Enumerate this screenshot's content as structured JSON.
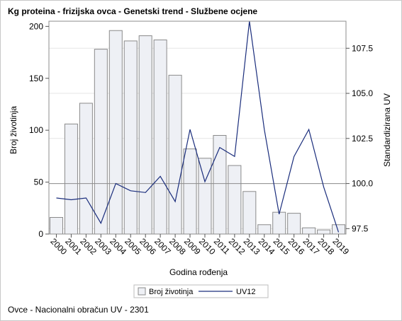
{
  "chart_data": {
    "type": "bar",
    "title": "Kg proteina - frizijska ovca - Genetski trend - Službene ocjene",
    "footnote": "Ovce - Nacionalni obračun UV - 2301",
    "xlabel": "Godina rođenja",
    "ylabel_left": "Broj životinja",
    "ylabel_right": "Standardizirana UV",
    "categories": [
      "2000",
      "2001",
      "2002",
      "2003",
      "2004",
      "2005",
      "2006",
      "2007",
      "2008",
      "2009",
      "2010",
      "2011",
      "2012",
      "2013",
      "2014",
      "2015",
      "2016",
      "2017",
      "2018",
      "2019"
    ],
    "ylim_left": [
      0,
      205
    ],
    "yticks_left": [
      0,
      50,
      100,
      150,
      200
    ],
    "ylim_right": [
      97.2,
      109.0
    ],
    "yticks_right": [
      97.5,
      100.0,
      102.5,
      105.0,
      107.5
    ],
    "reference_line_right": 100.0,
    "grid": true,
    "legend_position": "bottom",
    "series": [
      {
        "name": "Broj životinja",
        "type": "bar",
        "axis": "left",
        "color": "#eef0f5",
        "edge_color": "#8a8a8a",
        "values": [
          16,
          106,
          126,
          178,
          196,
          186,
          191,
          187,
          153,
          82,
          73,
          95,
          66,
          41,
          9,
          21,
          20,
          6,
          4,
          9
        ]
      },
      {
        "name": "UV12",
        "type": "line",
        "axis": "right",
        "color": "#1a2d7c",
        "values": [
          99.2,
          99.1,
          99.2,
          97.8,
          100.0,
          99.6,
          99.5,
          100.4,
          99.0,
          103.0,
          100.1,
          102.0,
          101.5,
          109.0,
          103.0,
          98.3,
          101.5,
          103.0,
          99.8,
          97.3
        ]
      }
    ]
  }
}
